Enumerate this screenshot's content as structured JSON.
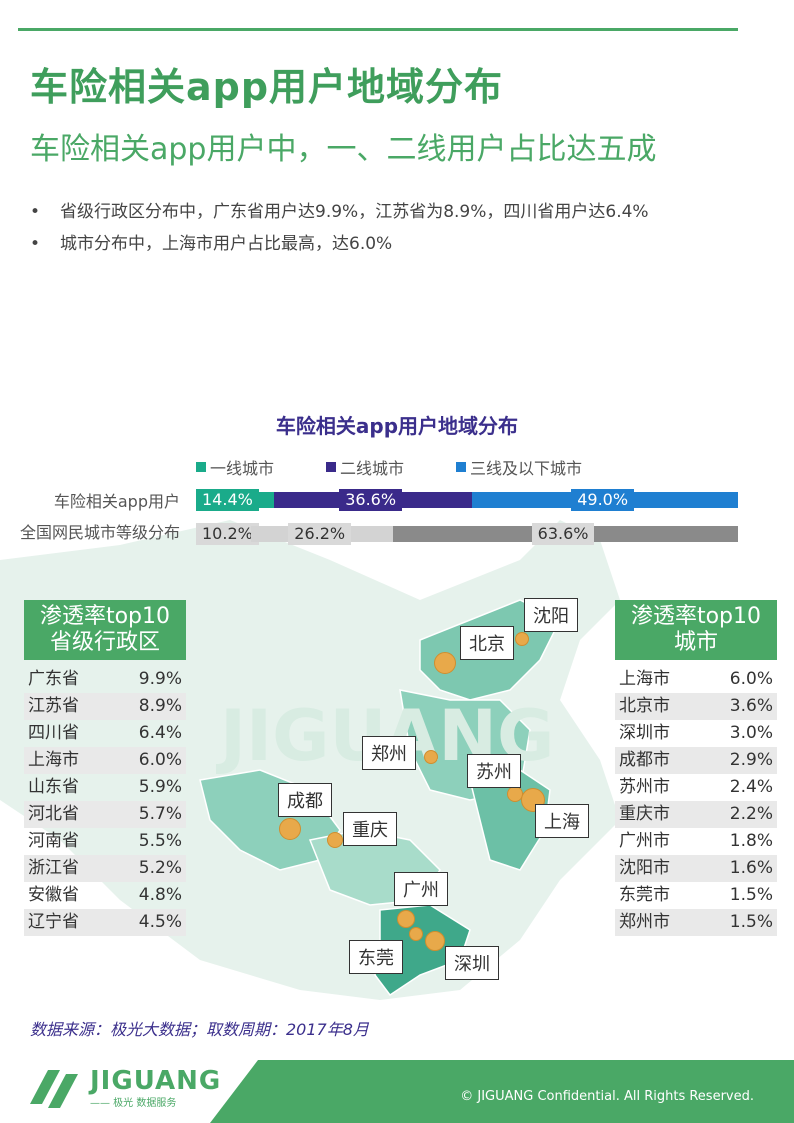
{
  "header": {
    "title": "车险相关app用户地域分布",
    "subtitle": "车险相关app用户中，一、二线用户占比达五成"
  },
  "bullets": [
    "省级行政区分布中，广东省用户达9.9%，江苏省为8.9%，四川省用户达6.4%",
    "城市分布中，上海市用户占比最高，达6.0%"
  ],
  "chart_data": {
    "type": "bar",
    "title": "车险相关app用户地域分布",
    "categories": [
      "车险相关app用户",
      "全国网民城市等级分布"
    ],
    "series": [
      {
        "name": "一线城市",
        "values": [
          14.4,
          10.2
        ],
        "labels": [
          "14.4%",
          "10.2%"
        ]
      },
      {
        "name": "二线城市",
        "values": [
          36.6,
          26.2
        ],
        "labels": [
          "36.6%",
          "26.2%"
        ]
      },
      {
        "name": "三线及以下城市",
        "values": [
          49.0,
          63.6
        ],
        "labels": [
          "49.0%",
          "63.6%"
        ]
      }
    ],
    "colors": {
      "tier1": "#1aab8a",
      "tier2": "#3a2a8a",
      "tier3": "#1f7fd1",
      "grey_light": "#d3d3d3",
      "grey_dark": "#8a8a8a"
    },
    "stacked": true
  },
  "province_table": {
    "title_line1": "渗透率top10",
    "title_line2": "省级行政区",
    "rows": [
      {
        "name": "广东省",
        "value": "9.9%"
      },
      {
        "name": "江苏省",
        "value": "8.9%"
      },
      {
        "name": "四川省",
        "value": "6.4%"
      },
      {
        "name": "上海市",
        "value": "6.0%"
      },
      {
        "name": "山东省",
        "value": "5.9%"
      },
      {
        "name": "河北省",
        "value": "5.7%"
      },
      {
        "name": "河南省",
        "value": "5.5%"
      },
      {
        "name": "浙江省",
        "value": "5.2%"
      },
      {
        "name": "安徽省",
        "value": "4.8%"
      },
      {
        "name": "辽宁省",
        "value": "4.5%"
      }
    ]
  },
  "city_table": {
    "title_line1": "渗透率top10",
    "title_line2": "城市",
    "rows": [
      {
        "name": "上海市",
        "value": "6.0%"
      },
      {
        "name": "北京市",
        "value": "3.6%"
      },
      {
        "name": "深圳市",
        "value": "3.0%"
      },
      {
        "name": "成都市",
        "value": "2.9%"
      },
      {
        "name": "苏州市",
        "value": "2.4%"
      },
      {
        "name": "重庆市",
        "value": "2.2%"
      },
      {
        "name": "广州市",
        "value": "1.8%"
      },
      {
        "name": "沈阳市",
        "value": "1.6%"
      },
      {
        "name": "东莞市",
        "value": "1.5%"
      },
      {
        "name": "郑州市",
        "value": "1.5%"
      }
    ]
  },
  "map_labels": {
    "shenyang": "沈阳",
    "beijing": "北京",
    "zhengzhou": "郑州",
    "suzhou": "苏州",
    "chengdu": "成都",
    "chongqing": "重庆",
    "shanghai": "上海",
    "guangzhou": "广州",
    "dongguan": "东莞",
    "shenzhen": "深圳"
  },
  "watermark": "JIGUANG",
  "source": "数据来源：极光大数据；取数周期：2017年8月",
  "footer": {
    "logo": "JIGUANG",
    "logo_sub": "—— 极光 数据服务",
    "copyright": "© JIGUANG  Confidential. All Rights Reserved."
  },
  "colors": {
    "brand_green": "#4aa866",
    "title_purple": "#3b2f8c"
  }
}
